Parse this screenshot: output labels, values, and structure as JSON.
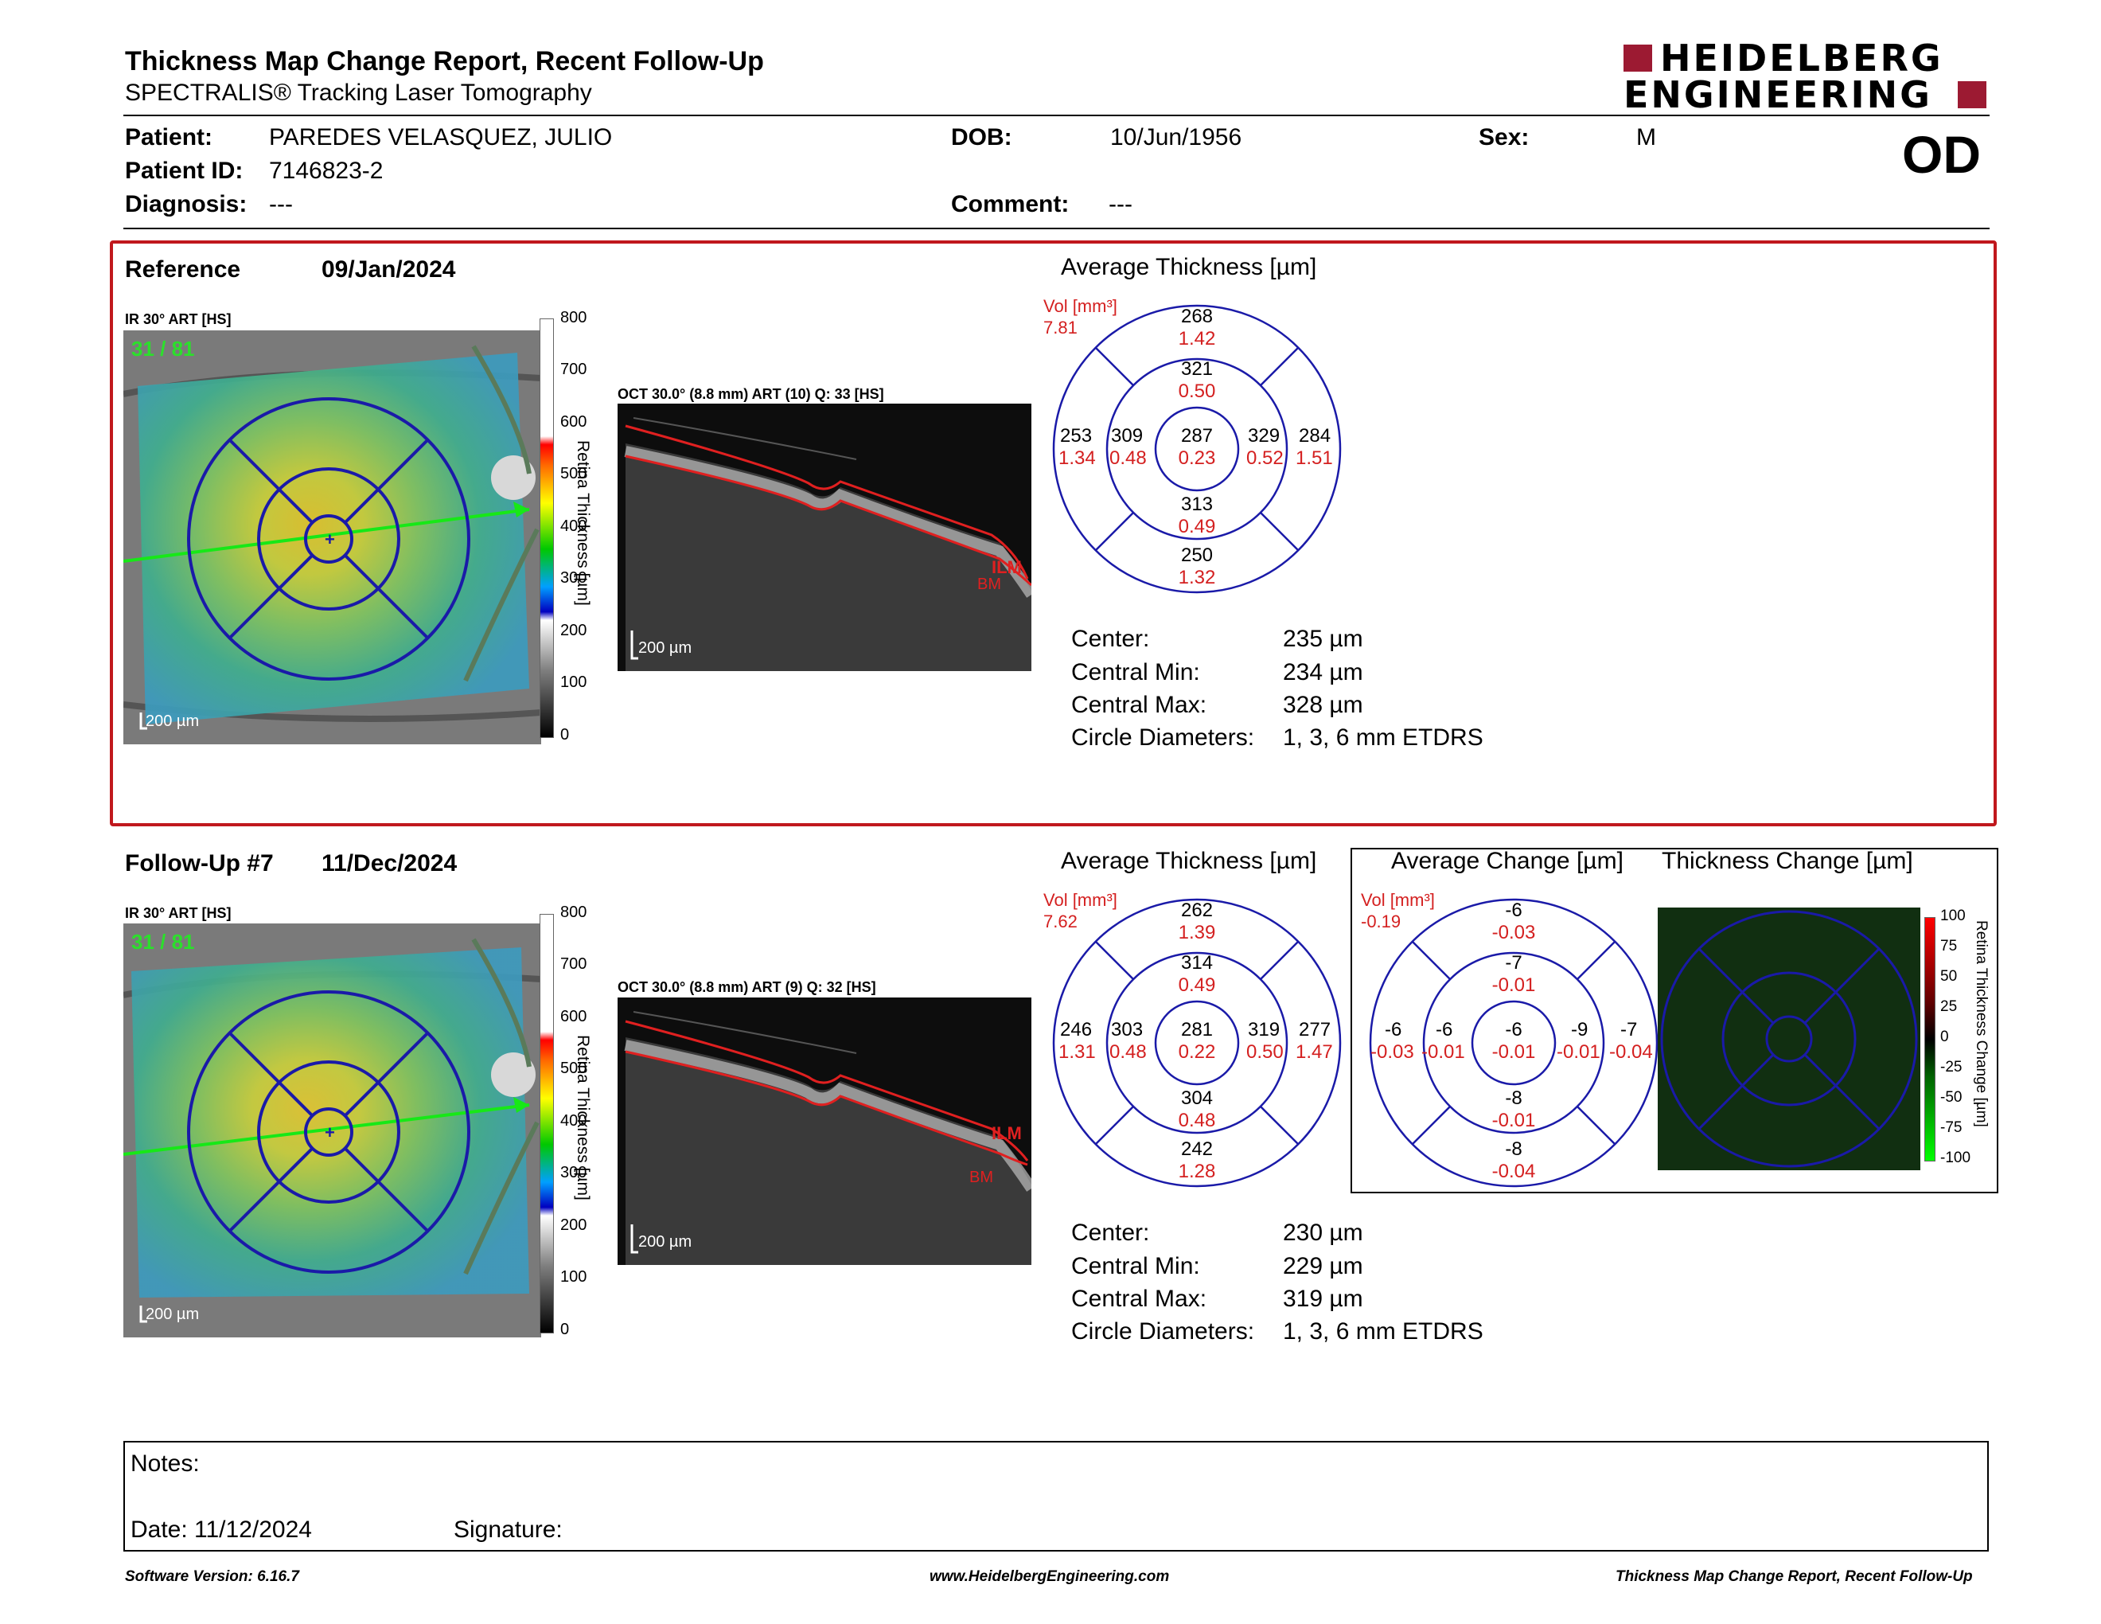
{
  "header": {
    "title": "Thickness Map Change Report, Recent Follow-Up",
    "subtitle": "SPECTRALIS® Tracking Laser Tomography",
    "logo_line1": "HEIDELBERG",
    "logo_line2": "ENGINEERING",
    "eye": "OD"
  },
  "patient": {
    "patient_label": "Patient:",
    "patient_value": "PAREDES VELASQUEZ, JULIO",
    "dob_label": "DOB:",
    "dob_value": "10/Jun/1956",
    "sex_label": "Sex:",
    "sex_value": "M",
    "id_label": "Patient ID:",
    "id_value": "7146823-2",
    "diagnosis_label": "Diagnosis:",
    "diagnosis_value": "---",
    "comment_label": "Comment:",
    "comment_value": "---"
  },
  "reference": {
    "label": "Reference",
    "date": "09/Jan/2024",
    "ir_label": "IR 30° ART [HS]",
    "art_overlay": "31 / 81",
    "oct_label": "OCT 30.0° (8.8 mm) ART (10) Q: 33 [HS]",
    "scale_bar": "200 µm",
    "colorbar_title": "Retina Thickness [µm]",
    "colorbar_ticks": [
      "800",
      "700",
      "600",
      "500",
      "400",
      "300",
      "200",
      "100",
      "0"
    ],
    "ilm": "ILM",
    "bm": "BM",
    "avg_title": "Average Thickness [µm]",
    "vol_label": "Vol [mm³]",
    "vol_total": "7.81",
    "etdrs": {
      "outer_sup": "268",
      "outer_sup_vol": "1.42",
      "inner_sup": "321",
      "inner_sup_vol": "0.50",
      "outer_temp": "253",
      "outer_temp_vol": "1.34",
      "inner_temp": "309",
      "inner_temp_vol": "0.48",
      "center": "287",
      "center_vol": "0.23",
      "inner_nas": "329",
      "inner_nas_vol": "0.52",
      "outer_nas": "284",
      "outer_nas_vol": "1.51",
      "inner_inf": "313",
      "inner_inf_vol": "0.49",
      "outer_inf": "250",
      "outer_inf_vol": "1.32"
    },
    "stats": {
      "center_label": "Center:",
      "center_value": "235 µm",
      "min_label": "Central Min:",
      "min_value": "234 µm",
      "max_label": "Central Max:",
      "max_value": "328 µm",
      "diam_label": "Circle Diameters:",
      "diam_value": "1, 3, 6 mm ETDRS"
    }
  },
  "followup": {
    "label": "Follow-Up #7",
    "date": "11/Dec/2024",
    "ir_label": "IR 30° ART [HS]",
    "art_overlay": "31 / 81",
    "oct_label": "OCT 30.0° (8.8 mm) ART (9) Q: 32 [HS]",
    "scale_bar": "200 µm",
    "colorbar_title": "Retina Thickness [µm]",
    "colorbar_ticks": [
      "800",
      "700",
      "600",
      "500",
      "400",
      "300",
      "200",
      "100",
      "0"
    ],
    "ilm": "ILM",
    "bm": "BM",
    "avg_title": "Average Thickness [µm]",
    "vol_label": "Vol [mm³]",
    "vol_total": "7.62",
    "etdrs": {
      "outer_sup": "262",
      "outer_sup_vol": "1.39",
      "inner_sup": "314",
      "inner_sup_vol": "0.49",
      "outer_temp": "246",
      "outer_temp_vol": "1.31",
      "inner_temp": "303",
      "inner_temp_vol": "0.48",
      "center": "281",
      "center_vol": "0.22",
      "inner_nas": "319",
      "inner_nas_vol": "0.50",
      "outer_nas": "277",
      "outer_nas_vol": "1.47",
      "inner_inf": "304",
      "inner_inf_vol": "0.48",
      "outer_inf": "242",
      "outer_inf_vol": "1.28"
    },
    "change_title": "Average Change [µm]",
    "change_vol_label": "Vol [mm³]",
    "change_vol_total": "-0.19",
    "change": {
      "outer_sup": "-6",
      "outer_sup_vol": "-0.03",
      "inner_sup": "-7",
      "inner_sup_vol": "-0.01",
      "outer_temp": "-6",
      "outer_temp_vol": "-0.03",
      "inner_temp": "-6",
      "inner_temp_vol": "-0.01",
      "center": "-6",
      "center_vol": "-0.01",
      "inner_nas": "-9",
      "inner_nas_vol": "-0.01",
      "outer_nas": "-7",
      "outer_nas_vol": "-0.04",
      "inner_inf": "-8",
      "inner_inf_vol": "-0.01",
      "outer_inf": "-8",
      "outer_inf_vol": "-0.04"
    },
    "tc_title": "Thickness Change [µm]",
    "tc_bar_title": "Retina Thickness Change [µm]",
    "tc_ticks": [
      "100",
      "75",
      "50",
      "25",
      "0",
      "-25",
      "-50",
      "-75",
      "-100"
    ],
    "stats": {
      "center_label": "Center:",
      "center_value": "230 µm",
      "min_label": "Central Min:",
      "min_value": "229 µm",
      "max_label": "Central Max:",
      "max_value": "319 µm",
      "diam_label": "Circle Diameters:",
      "diam_value": "1, 3, 6 mm ETDRS"
    }
  },
  "notes": {
    "notes_label": "Notes:",
    "date_label": "Date: 11/12/2024",
    "signature_label": "Signature:"
  },
  "footer": {
    "software": "Software Version: 6.16.7",
    "website": "www.HeidelbergEngineering.com",
    "report": "Thickness Map Change Report, Recent Follow-Up"
  },
  "colors": {
    "frame_red": "#c0181d",
    "logo_red": "#9c1a32",
    "etdrs_blue": "#1a1aa8",
    "volume_red": "#d42020"
  }
}
